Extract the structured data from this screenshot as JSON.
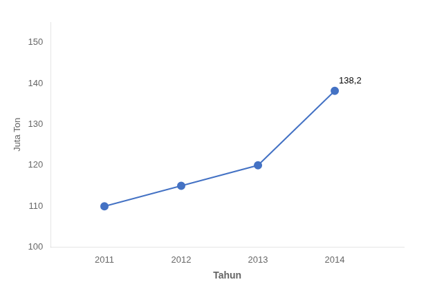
{
  "chart_data": {
    "type": "line",
    "x": [
      2011,
      2012,
      2013,
      2014
    ],
    "values": [
      110,
      115,
      120,
      138.2
    ],
    "color": "#4472C4",
    "marker": "circle",
    "xlabel": "Tahun",
    "ylabel": "Juta Ton",
    "xlim": [
      2010.3,
      2014.9
    ],
    "xticks": [
      2011,
      2012,
      2013,
      2014
    ],
    "ylim": [
      100,
      155
    ],
    "yticks": [
      100,
      110,
      120,
      130,
      140,
      150
    ],
    "grid": false,
    "annotation": {
      "text": "138,2",
      "x": 2014,
      "y": 138.2
    }
  }
}
